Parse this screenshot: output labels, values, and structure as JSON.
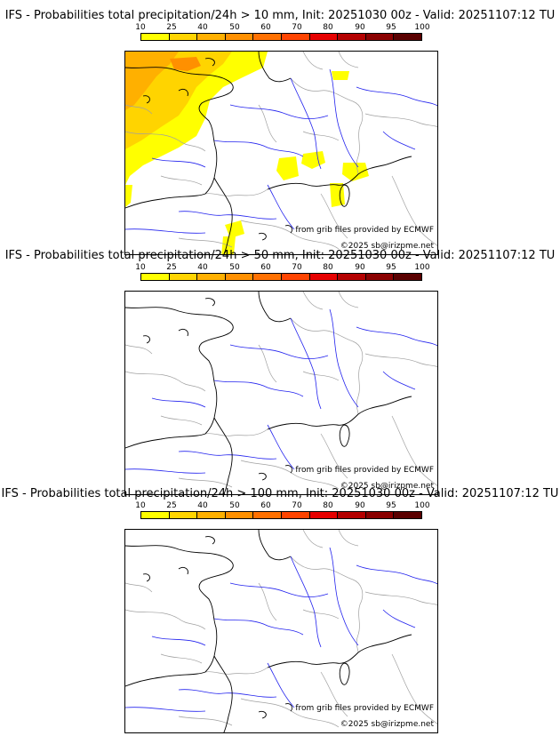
{
  "panels": [
    {
      "title": "IFS - Probabilities total precipitation/24h > 10 mm, Init: 20251030 00z - Valid: 20251107:12 TU",
      "precip_areas": "significant"
    },
    {
      "title": "IFS - Probabilities total precipitation/24h > 50 mm, Init: 20251030 00z - Valid: 20251107:12 TU",
      "precip_areas": "none"
    },
    {
      "title": "IFS - Probabilities total precipitation/24h > 100 mm, Init: 20251030 00z - Valid: 20251107:12 TU",
      "precip_areas": "none"
    }
  ],
  "colorbar": {
    "labels": [
      "10",
      "25",
      "40",
      "50",
      "60",
      "70",
      "80",
      "90",
      "95",
      "100"
    ],
    "colors": [
      "#ffff00",
      "#ffd400",
      "#ffb000",
      "#ff9000",
      "#ff7000",
      "#ff4400",
      "#e60000",
      "#b40000",
      "#8a0000",
      "#5a0000"
    ]
  },
  "credits": {
    "source": "from grib files provided by ECMWF",
    "copyright": "©2025 sb@irizpme.net"
  },
  "map_colors": {
    "coast": "#000000",
    "rivers": "#2222ee",
    "borders": "#a0a0a0"
  }
}
